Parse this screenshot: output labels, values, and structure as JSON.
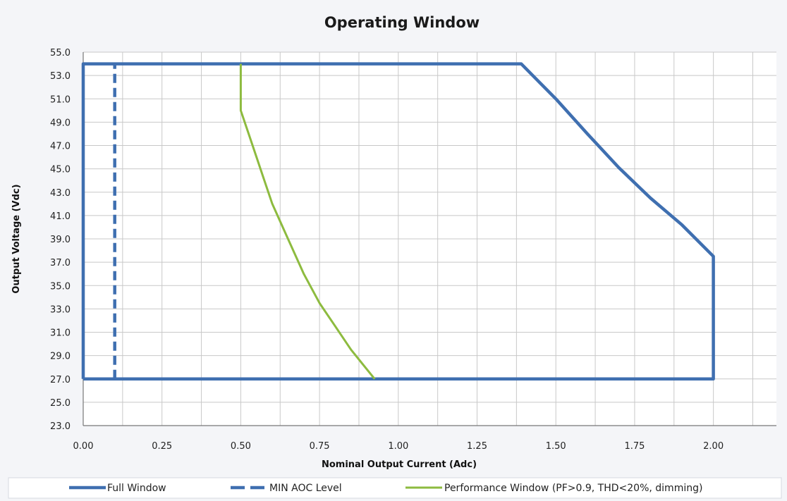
{
  "chart_data": {
    "type": "line",
    "title": "Operating Window",
    "xlabel": "Nominal Output Current (Adc)",
    "ylabel": "Output Voltage (Vdc)",
    "xlim": [
      0,
      2.2
    ],
    "ylim": [
      23,
      55
    ],
    "x_ticks": [
      "0.00",
      "0.25",
      "0.50",
      "0.75",
      "1.00",
      "1.25",
      "1.50",
      "1.75",
      "2.00"
    ],
    "y_ticks": [
      "23.0",
      "25.0",
      "27.0",
      "29.0",
      "31.0",
      "33.0",
      "35.0",
      "37.0",
      "39.0",
      "41.0",
      "43.0",
      "45.0",
      "47.0",
      "49.0",
      "51.0",
      "53.0",
      "55.0"
    ],
    "grid": true,
    "legend_position": "bottom",
    "series": [
      {
        "name": "Full Window",
        "color": "#3f6fb0",
        "style": "solid",
        "points": [
          [
            0,
            27
          ],
          [
            0,
            54
          ],
          [
            1.39,
            54
          ],
          [
            1.5,
            51
          ],
          [
            1.6,
            48
          ],
          [
            1.7,
            45.1
          ],
          [
            1.8,
            42.5
          ],
          [
            1.9,
            40.2
          ],
          [
            2.0,
            37.5
          ],
          [
            2.0,
            27
          ],
          [
            0,
            27
          ]
        ]
      },
      {
        "name": "MIN AOC Level",
        "color": "#3f6fb0",
        "style": "dashed",
        "points": [
          [
            0.1,
            27
          ],
          [
            0.1,
            54
          ]
        ]
      },
      {
        "name": "Performance Window (PF>0.9, THD<20%, dimming)",
        "color": "#8dbb3f",
        "style": "solid",
        "points": [
          [
            0.5,
            54
          ],
          [
            0.5,
            50
          ],
          [
            0.525,
            48
          ],
          [
            0.55,
            46
          ],
          [
            0.575,
            44
          ],
          [
            0.6,
            42
          ],
          [
            0.65,
            39
          ],
          [
            0.7,
            36
          ],
          [
            0.75,
            33.5
          ],
          [
            0.8,
            31.5
          ],
          [
            0.85,
            29.5
          ],
          [
            0.925,
            27
          ]
        ]
      }
    ]
  }
}
